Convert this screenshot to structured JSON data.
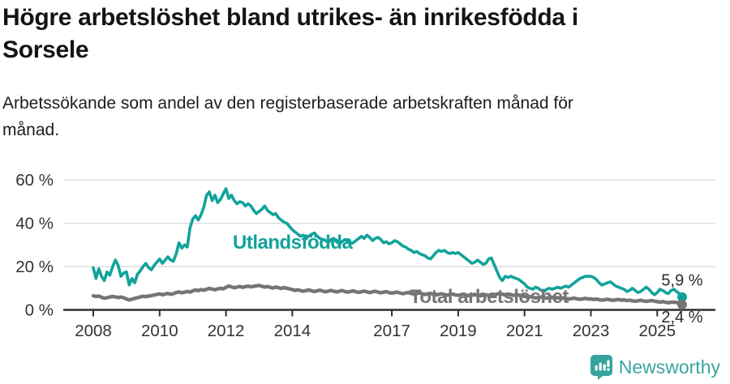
{
  "header": {
    "title_line1": "Högre arbetslöshet bland utrikes- än inrikesfödda i",
    "title_line2": "Sorsele",
    "subtitle_line1": "Arbetssökande som andel av den registerbaserade arbetskraften månad för",
    "subtitle_line2": "månad."
  },
  "footer": {
    "brand": "Newsworthy",
    "brand_color": "#3ba59e",
    "brand_icon": "newsworthy-chart-bubble-icon"
  },
  "chart_data": {
    "type": "line",
    "title": "Högre arbetslöshet bland utrikes- än inrikesfödda i Sorsele",
    "subtitle": "Arbetssökande som andel av den registerbaserade arbetskraften månad för månad.",
    "unit": "%",
    "grid": true,
    "legend_position": "inline-labels",
    "x_axis": {
      "range": [
        2007.1,
        2026.3
      ],
      "ticks": [
        {
          "value": 2008,
          "label": "2008"
        },
        {
          "value": 2010,
          "label": "2010"
        },
        {
          "value": 2012,
          "label": "2012"
        },
        {
          "value": 2014,
          "label": "2014"
        },
        {
          "value": 2017,
          "label": "2017"
        },
        {
          "value": 2019,
          "label": "2019"
        },
        {
          "value": 2021,
          "label": "2021"
        },
        {
          "value": 2023,
          "label": "2023"
        },
        {
          "value": 2025,
          "label": "2025"
        }
      ]
    },
    "y_axis": {
      "range": [
        0,
        62
      ],
      "ticks": [
        {
          "value": 0,
          "label": "0 %"
        },
        {
          "value": 20,
          "label": "20 %"
        },
        {
          "value": 40,
          "label": "40 %"
        },
        {
          "value": 60,
          "label": "60 %"
        }
      ]
    },
    "series": [
      {
        "id": "utlandsfodda",
        "name": "Utlandsfödda",
        "color": "#11a39b",
        "end_value": 5.9,
        "end_label": "5,9 %",
        "start_year": 2008,
        "interval": "monthly",
        "values": [
          19.5,
          14.5,
          19,
          15.5,
          13.5,
          17.5,
          16,
          20,
          23,
          20.5,
          15.5,
          17,
          17.5,
          11.5,
          14.5,
          12.5,
          16.5,
          18,
          20,
          21.5,
          19.5,
          18.5,
          20.5,
          22,
          23.5,
          21.5,
          23,
          24.5,
          23,
          22.5,
          26,
          31,
          28.5,
          30,
          29,
          38,
          42,
          43.5,
          41.5,
          44,
          47.5,
          53,
          54.5,
          50.5,
          53,
          49.5,
          51,
          53.5,
          56,
          51.5,
          53,
          50.5,
          49,
          50,
          49.5,
          48,
          49,
          48,
          46,
          44.5,
          45.5,
          46.5,
          48,
          46,
          45,
          44,
          44.5,
          42.5,
          41.5,
          40.5,
          40,
          38.5,
          37,
          36,
          35,
          34,
          34.5,
          33.5,
          34,
          35,
          35.5,
          34,
          33,
          32.5,
          32,
          31,
          32.5,
          33,
          31.5,
          30.5,
          31.5,
          32.5,
          31.5,
          30.5,
          31,
          32,
          33,
          34,
          33,
          34.5,
          33.5,
          32,
          33,
          33.5,
          32.5,
          31,
          31.5,
          30.5,
          31,
          32,
          31.5,
          30.5,
          29.5,
          29,
          28,
          27.5,
          26.5,
          27,
          26,
          25.5,
          25,
          24,
          23.5,
          25,
          26.5,
          27.5,
          27,
          27.5,
          26.5,
          26,
          26.5,
          26,
          26.5,
          25.5,
          24.5,
          23.5,
          22.5,
          21.5,
          22,
          23,
          22,
          21,
          21.5,
          23.5,
          24,
          21,
          18,
          15,
          13.5,
          15.5,
          15,
          15.5,
          15,
          14.5,
          14,
          13,
          12,
          10.5,
          10,
          9.5,
          10.5,
          10,
          9,
          8.5,
          9.5,
          10,
          9.5,
          10,
          10.5,
          10,
          10.5,
          11,
          10.5,
          11.5,
          12.5,
          13.5,
          14.5,
          15,
          15.5,
          15.5,
          15.5,
          15,
          14,
          12.5,
          11.5,
          12,
          12.5,
          13,
          12,
          11,
          10.5,
          10,
          9.5,
          8.5,
          9,
          10,
          9,
          8,
          8.5,
          9.5,
          10.5,
          9.5,
          8,
          7,
          8,
          9.5,
          9,
          8,
          7.5,
          9,
          9.5,
          8.5,
          7.5,
          5.9
        ]
      },
      {
        "id": "total",
        "name": "Total arbetslöshet",
        "color": "#757575",
        "end_value": 2.4,
        "end_label": "2,4 %",
        "start_year": 2008,
        "interval": "monthly",
        "values": [
          6.5,
          6.2,
          6.4,
          5.8,
          5.4,
          5.6,
          5.9,
          6.2,
          6,
          5.7,
          5.9,
          5.6,
          5,
          4.6,
          4.9,
          5.3,
          5.6,
          6,
          6.3,
          6.1,
          6.4,
          6.6,
          6.9,
          7.1,
          7.4,
          7,
          7.3,
          7.6,
          7.2,
          7.5,
          8,
          8.3,
          7.9,
          8.2,
          8.5,
          8.2,
          8.8,
          9.2,
          8.9,
          9.4,
          9.1,
          9.5,
          9.9,
          9.6,
          9.3,
          9.7,
          10,
          9.7,
          10.4,
          11,
          10.6,
          10.2,
          10.5,
          10.8,
          10.4,
          10.7,
          11,
          10.6,
          10.9,
          11.1,
          11.3,
          10.9,
          10.5,
          10.8,
          10.4,
          10.1,
          10.5,
          10.2,
          9.9,
          10.3,
          10,
          9.7,
          9.4,
          9,
          9.3,
          8.9,
          8.6,
          8.9,
          9.2,
          8.8,
          8.5,
          8.8,
          9.1,
          8.7,
          8.4,
          8.7,
          9,
          8.6,
          8.3,
          8.6,
          8.9,
          8.5,
          8.2,
          8.5,
          8.8,
          8.4,
          8.1,
          8.4,
          8.7,
          8.3,
          8,
          8.3,
          8.6,
          8.2,
          7.9,
          8.2,
          8.4,
          8,
          7.7,
          8,
          8.2,
          7.8,
          7.5,
          7.8,
          8,
          7.6,
          7.3,
          7.6,
          7.8,
          7.4,
          7.1,
          7.4,
          7.6,
          7.2,
          6.9,
          7.2,
          7.4,
          7,
          6.8,
          7.1,
          7.3,
          6.9,
          6.7,
          7,
          7.2,
          6.8,
          6.5,
          6.8,
          7,
          6.7,
          6.5,
          6.8,
          7,
          6.7,
          6.6,
          6.9,
          7.3,
          7.6,
          7.2,
          7,
          7.3,
          7,
          6.7,
          7,
          6.8,
          6.5,
          6.2,
          5.9,
          6.1,
          5.8,
          5.5,
          5.7,
          5.9,
          5.6,
          5.4,
          5.6,
          5.8,
          5.5,
          5.6,
          5.3,
          5.5,
          5.2,
          5,
          5.2,
          5.4,
          5.1,
          4.9,
          5.1,
          5.3,
          5,
          5.1,
          4.8,
          5,
          4.7,
          4.5,
          4.7,
          4.9,
          4.6,
          4.4,
          4.6,
          4.8,
          4.5,
          4.6,
          4.3,
          4.5,
          4.2,
          4,
          4.2,
          4.4,
          4.1,
          3.9,
          4.1,
          4.3,
          4,
          3.8,
          3.6,
          3.8,
          3.5,
          3.3,
          3.5,
          3.6,
          3.4,
          3.2,
          2.4
        ]
      }
    ]
  }
}
